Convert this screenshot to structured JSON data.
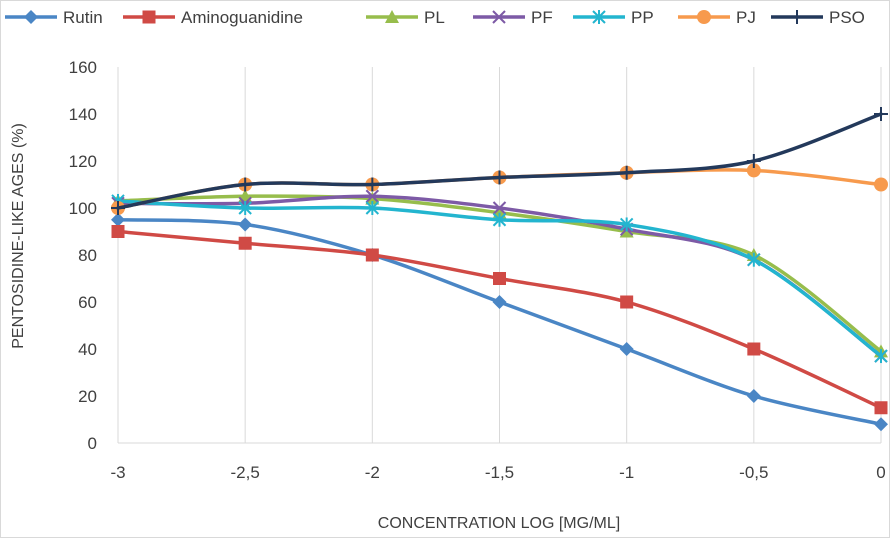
{
  "chart_data": {
    "type": "line",
    "title": "",
    "xlabel": "CONCENTRATION LOG [MG/ML]",
    "ylabel": "PENTOSIDINE-LIKE AGES (%)",
    "x": [
      -3,
      -2.5,
      -2,
      -1.5,
      -1,
      -0.5,
      0
    ],
    "x_tick_labels": [
      "-3",
      "-2,5",
      "-2",
      "-1,5",
      "-1",
      "-0,5",
      "0"
    ],
    "xlim": [
      -3,
      0
    ],
    "ylim": [
      0,
      160
    ],
    "y_ticks": [
      0,
      20,
      40,
      60,
      80,
      100,
      120,
      140,
      160
    ],
    "y_tick_labels": [
      "0",
      "20",
      "40",
      "60",
      "80",
      "100",
      "120",
      "140",
      "160"
    ],
    "grid": "vertical",
    "legend_position": "top",
    "series": [
      {
        "name": "Rutin",
        "color": "#4a86c5",
        "marker": "diamond",
        "values": [
          95,
          93,
          80,
          60,
          40,
          20,
          8
        ]
      },
      {
        "name": "Aminoguanidine",
        "color": "#d04a45",
        "marker": "square",
        "values": [
          90,
          85,
          80,
          70,
          60,
          40,
          15
        ]
      },
      {
        "name": "PL",
        "color": "#97bd4c",
        "marker": "triangle",
        "values": [
          103,
          105,
          104,
          98,
          90,
          80,
          39
        ]
      },
      {
        "name": "PF",
        "color": "#7d5aa6",
        "marker": "x",
        "values": [
          102,
          102,
          105,
          100,
          91,
          78,
          37
        ]
      },
      {
        "name": "PP",
        "color": "#23b5cf",
        "marker": "asterisk",
        "values": [
          103,
          100,
          100,
          95,
          93,
          78,
          37
        ]
      },
      {
        "name": "PJ",
        "color": "#f79a4d",
        "marker": "circle",
        "values": [
          100,
          110,
          110,
          113,
          115,
          116,
          110
        ]
      },
      {
        "name": "PSO",
        "color": "#23395b",
        "marker": "plus",
        "values": [
          100,
          110,
          110,
          113,
          115,
          120,
          140
        ]
      }
    ]
  }
}
